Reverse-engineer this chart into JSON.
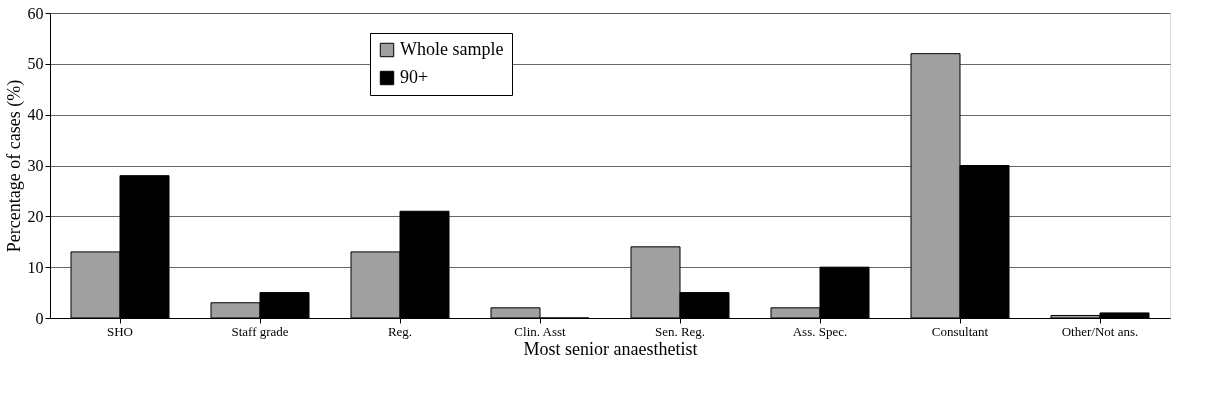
{
  "chart_data": {
    "type": "bar",
    "xlabel": "Most senior anaesthetist",
    "ylabel": "Percentage of cases (%)",
    "categories": [
      "SHO",
      "Staff grade",
      "Reg.",
      "Clin. Asst",
      "Sen. Reg.",
      "Ass. Spec.",
      "Consultant",
      "Other/Not ans."
    ],
    "series": [
      {
        "name": "Whole sample",
        "color": "#a0a0a0",
        "values": [
          13,
          3,
          13,
          2,
          14,
          2,
          52,
          0.5
        ]
      },
      {
        "name": "90+",
        "color": "#000000",
        "values": [
          28,
          5,
          21,
          0,
          5,
          10,
          30,
          1
        ]
      }
    ],
    "ylim": [
      0,
      60
    ],
    "yticks": [
      0,
      10,
      20,
      30,
      40,
      50,
      60
    ],
    "grid": "y",
    "legend": "top left"
  }
}
